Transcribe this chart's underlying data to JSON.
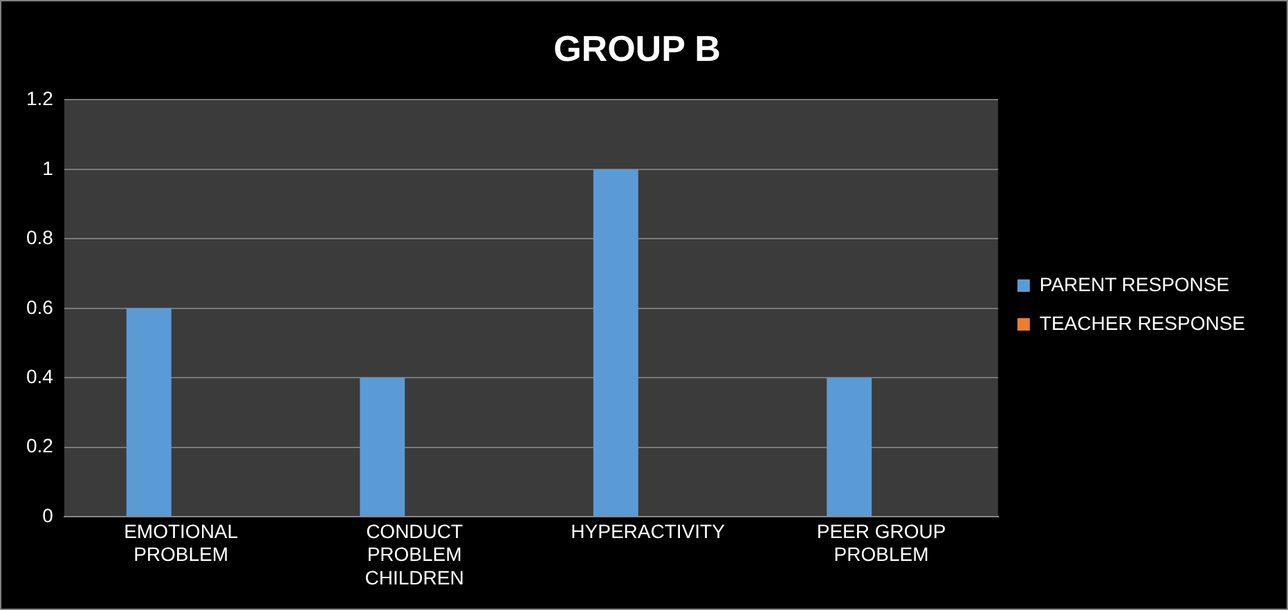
{
  "chart_data": {
    "type": "bar",
    "title": "GROUP B",
    "categories": [
      "EMOTIONAL PROBLEM",
      "CONDUCT PROBLEM CHILDREN",
      "HYPERACTIVITY",
      "PEER GROUP PROBLEM"
    ],
    "series": [
      {
        "name": "PARENT RESPONSE",
        "color": "#5b9bd5",
        "values": [
          0.6,
          0.4,
          1,
          0.4
        ]
      },
      {
        "name": "TEACHER RESPONSE",
        "color": "#ed7d31",
        "values": [
          0,
          0,
          0,
          0
        ]
      }
    ],
    "ylim": [
      0,
      1.2
    ],
    "yticks": [
      0,
      0.2,
      0.4,
      0.6,
      0.8,
      1,
      1.2
    ],
    "grid": "y",
    "legend": "right"
  }
}
